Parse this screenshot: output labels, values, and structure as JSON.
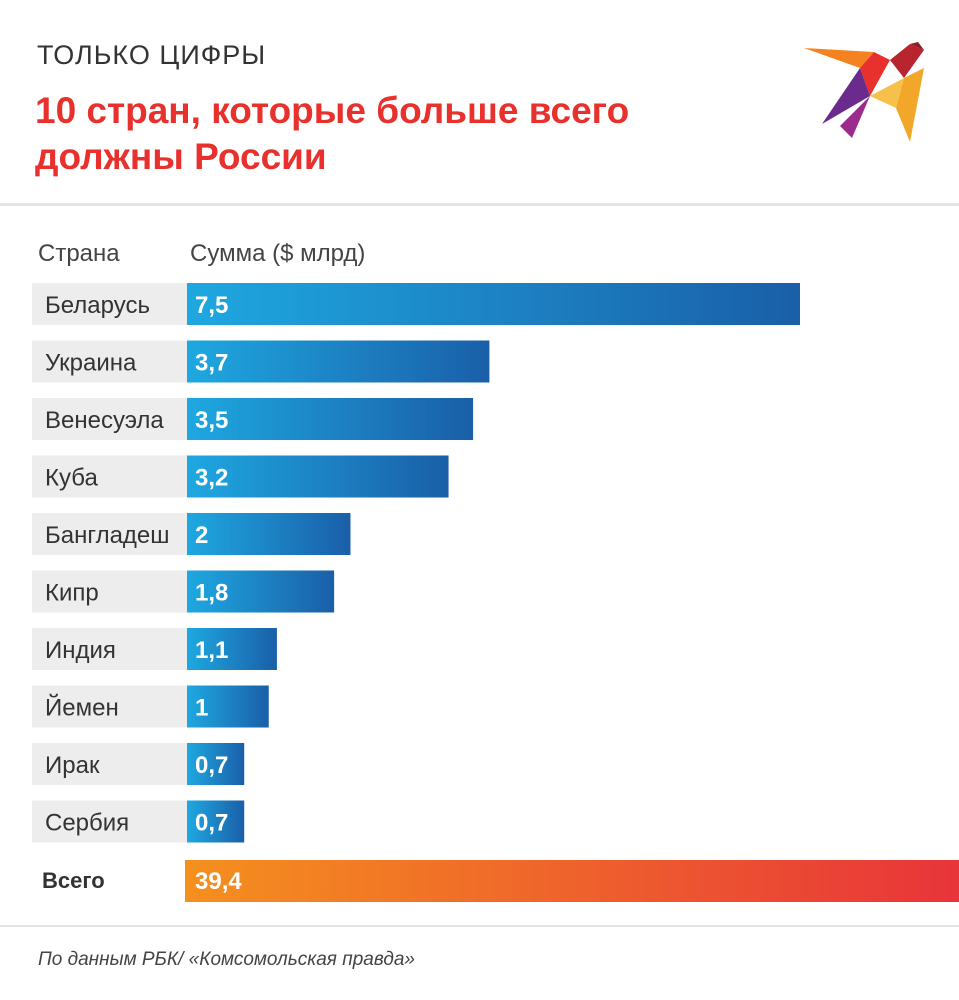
{
  "header": {
    "kicker": "ТОЛЬКО ЦИФРЫ",
    "title": "10 стран, которые больше всего должны России"
  },
  "logo": {
    "icon": "swallow-bird-icon",
    "colors": [
      "#e8302c",
      "#f2a72a",
      "#6a2b8c",
      "#f58220"
    ]
  },
  "table_headers": {
    "country": "Страна",
    "sum": "Сумма ($ млрд)"
  },
  "chart_data": {
    "type": "bar",
    "orientation": "horizontal",
    "unit": "$ млрд",
    "categories": [
      "Беларусь",
      "Украина",
      "Венесуэла",
      "Куба",
      "Бангладеш",
      "Кипр",
      "Индия",
      "Йемен",
      "Ирак",
      "Сербия"
    ],
    "values": [
      7.5,
      3.7,
      3.5,
      3.2,
      2,
      1.8,
      1.1,
      1,
      0.7,
      0.7
    ],
    "value_labels": [
      "7,5",
      "3,7",
      "3,5",
      "3,2",
      "2",
      "1,8",
      "1,1",
      "1",
      "0,7",
      "0,7"
    ],
    "total": {
      "label": "Всего",
      "value": 39.4,
      "value_label": "39,4"
    },
    "colors": {
      "bar_start": "#1ea8e0",
      "bar_end": "#1a5fa8",
      "total_start": "#f5901e",
      "total_end": "#e8343a",
      "label_bg": "#ededed"
    }
  },
  "footer": {
    "source": "По данным РБК/ «Комсомольская правда»"
  }
}
